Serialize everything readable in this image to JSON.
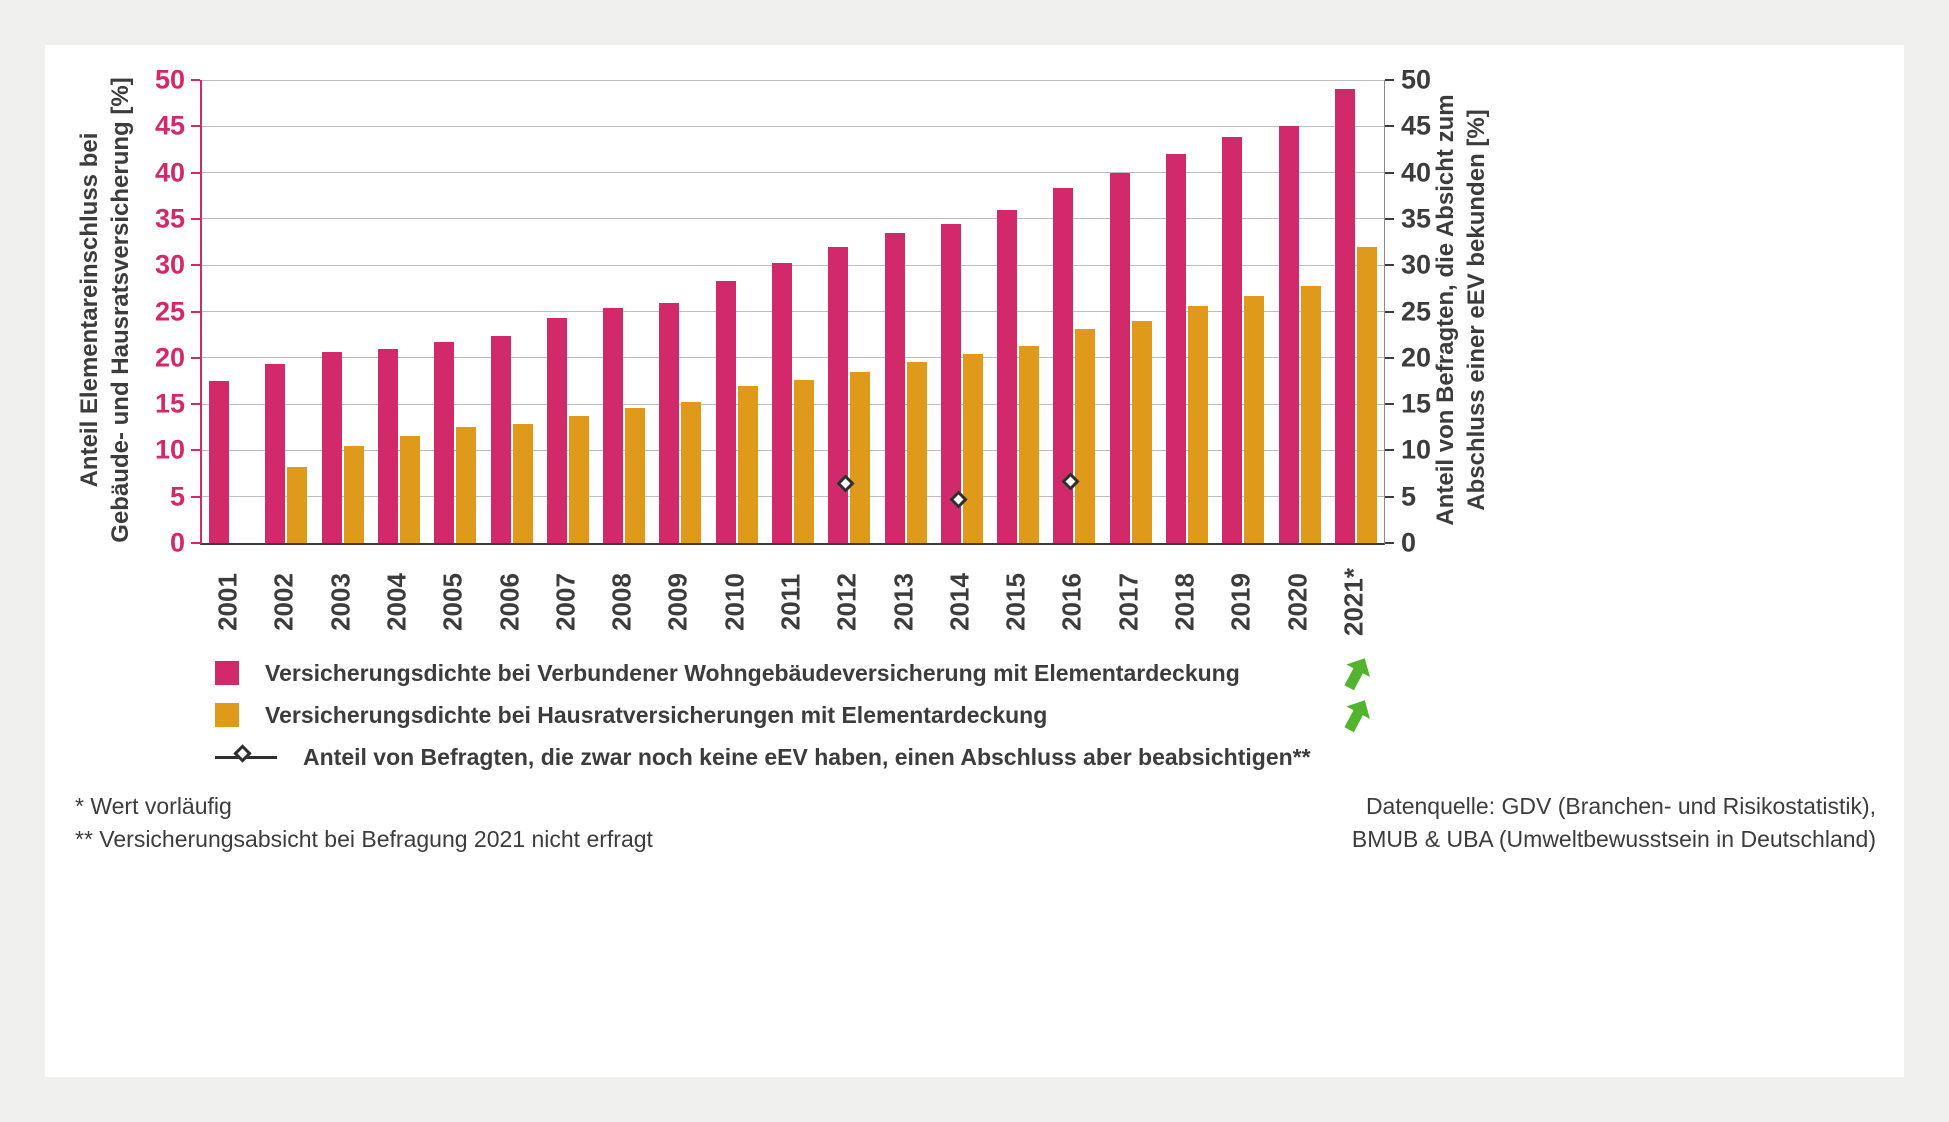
{
  "colors": {
    "wohngebaeude_pink": "#d2296b",
    "hausrat_orange": "#df9a1b",
    "marker_outline": "#2e2e2e",
    "trend_arrow_green": "#52b32d",
    "text": "#3c3c3c",
    "panel_bg": "#ffffff",
    "page_bg": "#f0f0ee"
  },
  "chart_data": {
    "type": "bar",
    "categories": [
      "2001",
      "2002",
      "2003",
      "2004",
      "2005",
      "2006",
      "2007",
      "2008",
      "2009",
      "2010",
      "2011",
      "2012",
      "2013",
      "2014",
      "2015",
      "2016",
      "2017",
      "2018",
      "2019",
      "2020",
      "2021*"
    ],
    "series": [
      {
        "name": "Versicherungsdichte bei Verbundener Wohngebäudeversicherung mit Elementardeckung",
        "color": "#d2296b",
        "values": [
          17.5,
          19.3,
          20.6,
          21.0,
          21.7,
          22.4,
          24.3,
          25.4,
          25.9,
          28.3,
          30.2,
          32.0,
          33.5,
          34.5,
          36.0,
          38.3,
          40.0,
          42.0,
          43.8,
          45.0,
          49.0
        ]
      },
      {
        "name": "Versicherungsdichte bei Hausratversicherungen mit Elementardeckung",
        "color": "#df9a1b",
        "values": [
          null,
          8.2,
          10.5,
          11.6,
          12.5,
          12.9,
          13.7,
          14.6,
          15.2,
          17.0,
          17.6,
          18.5,
          19.5,
          20.4,
          21.3,
          23.1,
          24.0,
          25.6,
          26.7,
          27.8,
          32.0
        ]
      }
    ],
    "markers": {
      "name": "Anteil von Befragten, die zwar noch keine eEV haben, einen Abschluss aber beabsichtigen**",
      "points": [
        {
          "category": "2012",
          "value": 6.1
        },
        {
          "category": "2014",
          "value": 4.3
        },
        {
          "category": "2016",
          "value": 6.3
        }
      ]
    },
    "left_axis": {
      "label": "Anteil Elementareinschluss bei Gebäude- und Hausratsversicherung [%]",
      "label_lines": [
        "Anteil Elementareinschluss bei",
        "Gebäude- und Hausratsversicherung [%]"
      ],
      "min": 0,
      "max": 50,
      "step": 5
    },
    "right_axis": {
      "label": "Anteil von Befragten, die Absicht zum Abschluss einer eEV bekunden [%]",
      "label_lines": [
        "Anteil von Befragten, die Absicht zum",
        "Abschluss einer eEV bekunden [%]"
      ],
      "min": 0,
      "max": 50,
      "step": 5
    },
    "grid": true,
    "legend_position": "bottom"
  },
  "legend": {
    "items": [
      {
        "label": "Versicherungsdichte bei Verbundener Wohngebäudeversicherung mit Elementardeckung"
      },
      {
        "label": "Versicherungsdichte bei Hausratversicherungen mit Elementardeckung"
      },
      {
        "label": "Anteil von Befragten, die zwar noch keine eEV haben, einen Abschluss aber beabsichtigen**"
      }
    ]
  },
  "footnotes": [
    "* Wert vorläufig",
    "** Versicherungsabsicht bei Befragung 2021 nicht erfragt"
  ],
  "source_lines": [
    "Datenquelle: GDV (Branchen- und Risikostatistik),",
    "BMUB & UBA (Umweltbewusstsein in Deutschland)"
  ]
}
